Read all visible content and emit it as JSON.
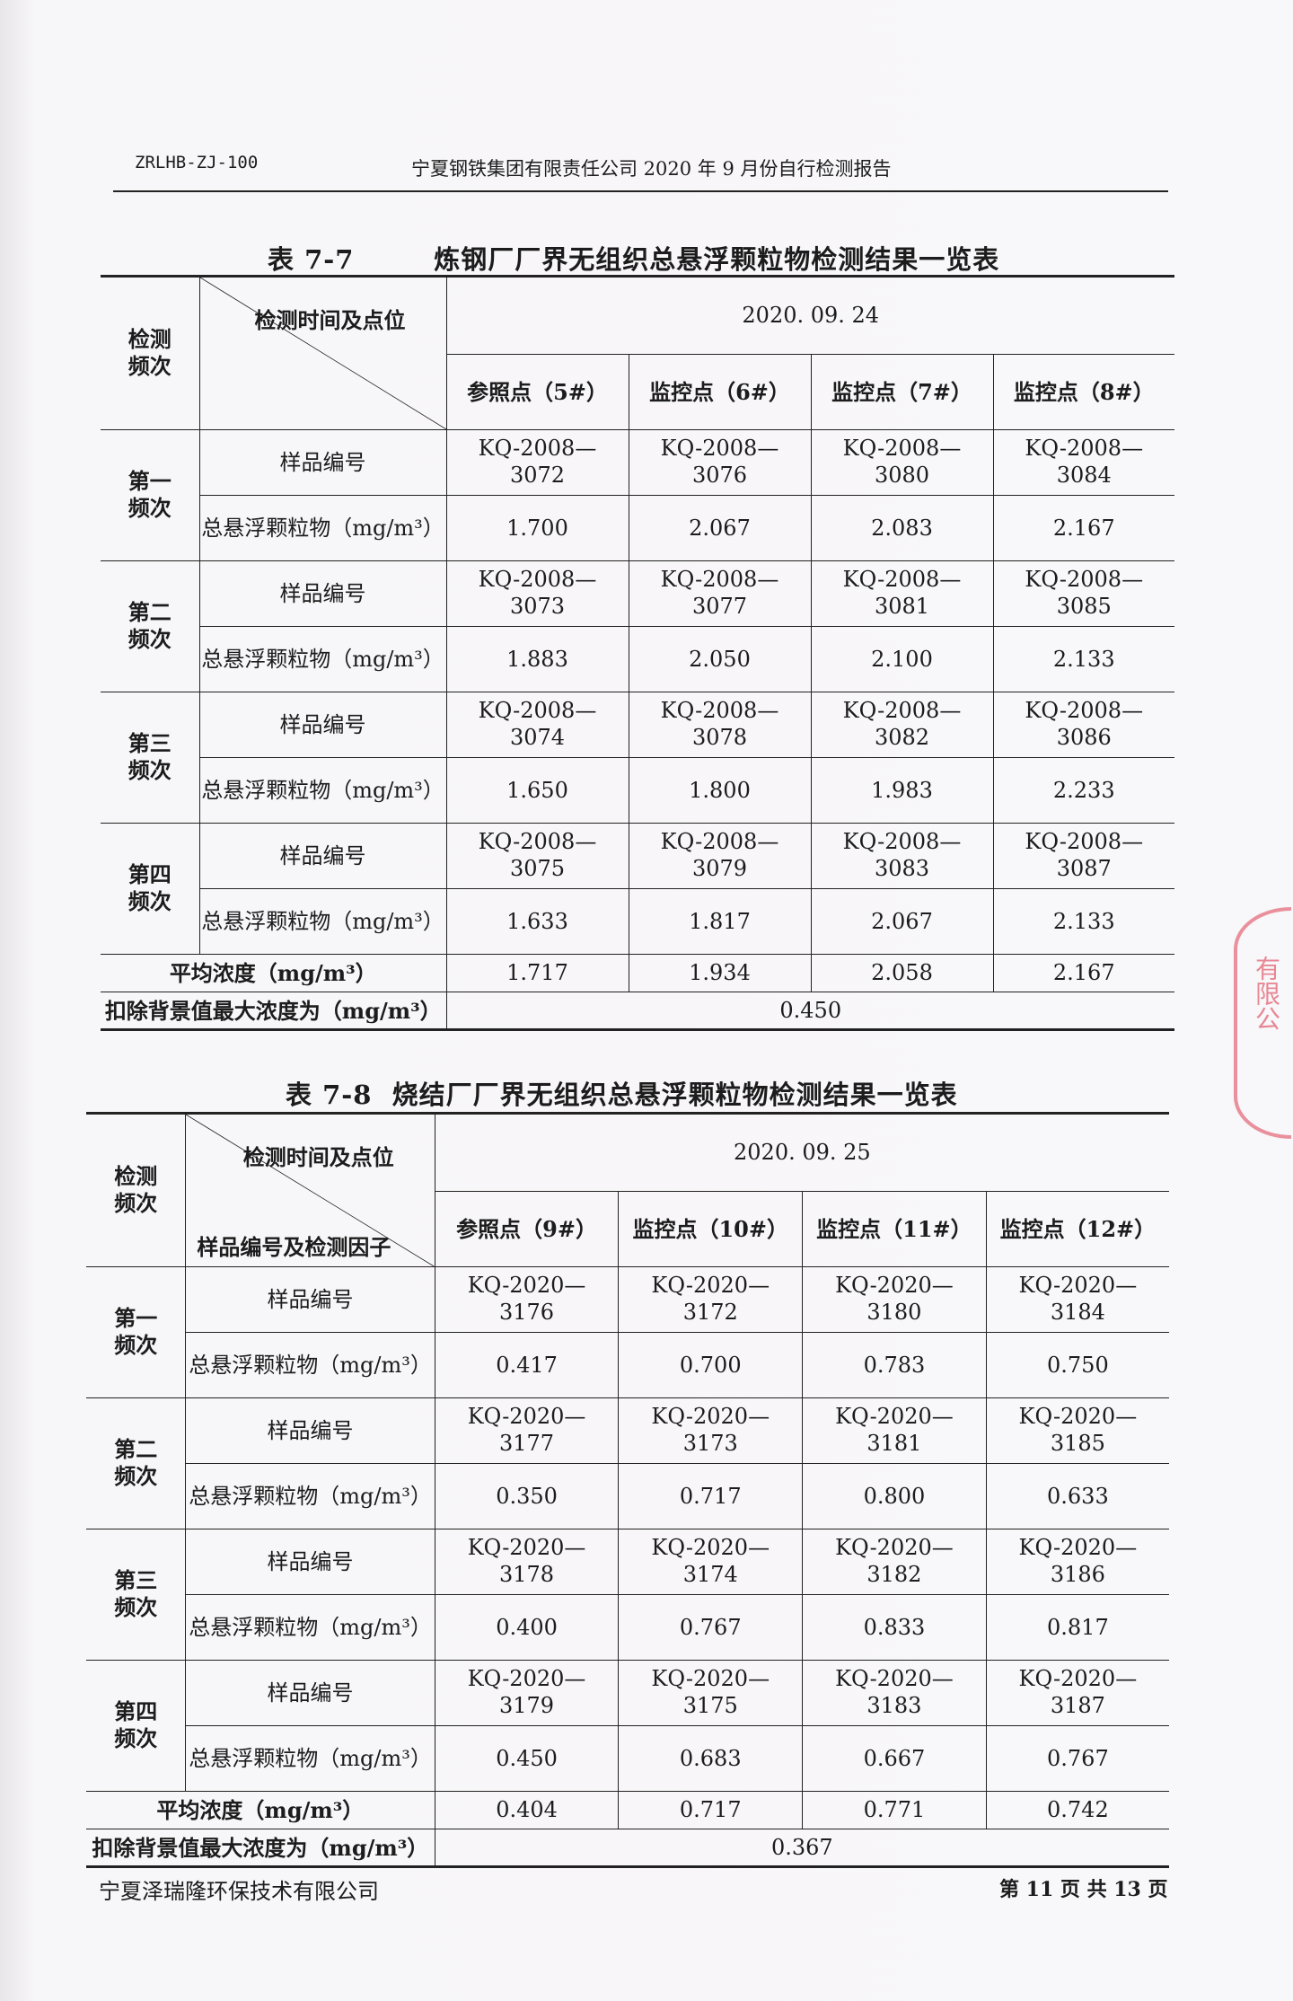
{
  "header": {
    "code": "ZRLHB-ZJ-100",
    "title": "宁夏钢铁集团有限责任公司 2020 年 9 月份自行检测报告"
  },
  "tables": [
    {
      "caption": "表 7-7        炼钢厂厂界无组织总悬浮颗粒物检测结果一览表",
      "freq_header": "检测频次",
      "diag_top": "检测时间及点位",
      "diag_bottom": "",
      "date": "2020. 09. 24",
      "points": [
        "参照点（5#）",
        "监控点（6#）",
        "监控点（7#）",
        "监控点（8#）"
      ],
      "sample_label": "样品编号",
      "tsp_label": "总悬浮颗粒物（mg/m³）",
      "rows": [
        {
          "freq": "第一频次",
          "samples": [
            "KQ-2008—3072",
            "KQ-2008—3076",
            "KQ-2008—3080",
            "KQ-2008—3084"
          ],
          "values": [
            "1.700",
            "2.067",
            "2.083",
            "2.167"
          ]
        },
        {
          "freq": "第二频次",
          "samples": [
            "KQ-2008—3073",
            "KQ-2008—3077",
            "KQ-2008—3081",
            "KQ-2008—3085"
          ],
          "values": [
            "1.883",
            "2.050",
            "2.100",
            "2.133"
          ]
        },
        {
          "freq": "第三频次",
          "samples": [
            "KQ-2008—3074",
            "KQ-2008—3078",
            "KQ-2008—3082",
            "KQ-2008—3086"
          ],
          "values": [
            "1.650",
            "1.800",
            "1.983",
            "2.233"
          ]
        },
        {
          "freq": "第四频次",
          "samples": [
            "KQ-2008—3075",
            "KQ-2008—3079",
            "KQ-2008—3083",
            "KQ-2008—3087"
          ],
          "values": [
            "1.633",
            "1.817",
            "2.067",
            "2.133"
          ]
        }
      ],
      "avg_label": "平均浓度（mg/m³）",
      "avg": [
        "1.717",
        "1.934",
        "2.058",
        "2.167"
      ],
      "max_label": "扣除背景值最大浓度为（mg/m³）",
      "max": "0.450"
    },
    {
      "caption": "表 7-8  烧结厂厂界无组织总悬浮颗粒物检测结果一览表",
      "freq_header": "检测频次",
      "diag_top": "检测时间及点位",
      "diag_bottom": "样品编号及检测因子",
      "date": "2020. 09. 25",
      "points": [
        "参照点（9#）",
        "监控点（10#）",
        "监控点（11#）",
        "监控点（12#）"
      ],
      "sample_label": "样品编号",
      "tsp_label": "总悬浮颗粒物（mg/m³）",
      "rows": [
        {
          "freq": "第一频次",
          "samples": [
            "KQ-2020—3176",
            "KQ-2020—3172",
            "KQ-2020—3180",
            "KQ-2020—3184"
          ],
          "values": [
            "0.417",
            "0.700",
            "0.783",
            "0.750"
          ]
        },
        {
          "freq": "第二频次",
          "samples": [
            "KQ-2020—3177",
            "KQ-2020—3173",
            "KQ-2020—3181",
            "KQ-2020—3185"
          ],
          "values": [
            "0.350",
            "0.717",
            "0.800",
            "0.633"
          ]
        },
        {
          "freq": "第三频次",
          "samples": [
            "KQ-2020—3178",
            "KQ-2020—3174",
            "KQ-2020—3182",
            "KQ-2020—3186"
          ],
          "values": [
            "0.400",
            "0.767",
            "0.833",
            "0.817"
          ]
        },
        {
          "freq": "第四频次",
          "samples": [
            "KQ-2020—3179",
            "KQ-2020—3175",
            "KQ-2020—3183",
            "KQ-2020—3187"
          ],
          "values": [
            "0.450",
            "0.683",
            "0.667",
            "0.767"
          ]
        }
      ],
      "avg_label": "平均浓度（mg/m³）",
      "avg": [
        "0.404",
        "0.717",
        "0.771",
        "0.742"
      ],
      "max_label": "扣除背景值最大浓度为（mg/m³）",
      "max": "0.367"
    }
  ],
  "stamp": {
    "text": "有限公司章",
    "color": "#dc3c50"
  },
  "footer": {
    "company": "宁夏泽瑞隆环保技术有限公司",
    "page": "第 11 页  共 13 页"
  }
}
